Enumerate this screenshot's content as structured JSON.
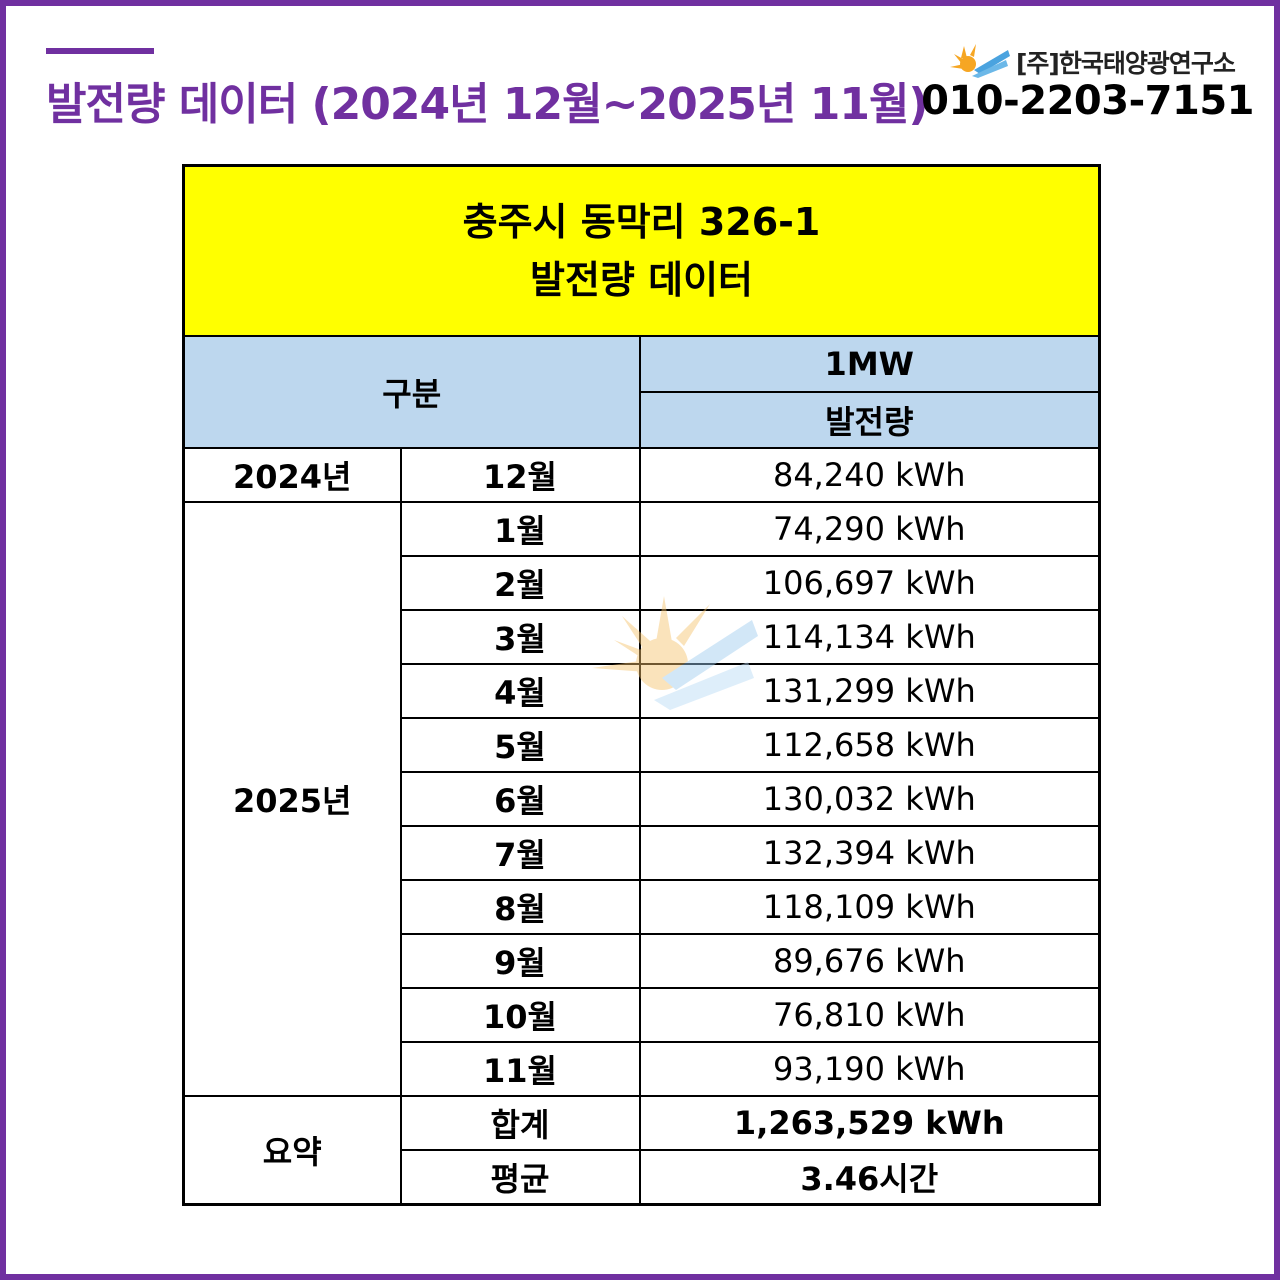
{
  "header": {
    "title": "발전량 데이터 (2024년 12월~2025년 11월)",
    "company": "[주]한국태양광연구소",
    "phone": "010-2203-7151",
    "logo_icon": "sun-solar-panel-icon"
  },
  "table": {
    "heading_line1": "충주시 동막리 326-1",
    "heading_line2": "발전량 데이터",
    "col_category": "구분",
    "col_capacity": "1MW",
    "col_generation": "발전량",
    "year_2024": "2024년",
    "year_2025": "2025년",
    "rows_2024": [
      {
        "month": "12월",
        "value": "84,240 kWh"
      }
    ],
    "rows_2025": [
      {
        "month": "1월",
        "value": "74,290 kWh"
      },
      {
        "month": "2월",
        "value": "106,697 kWh"
      },
      {
        "month": "3월",
        "value": "114,134 kWh"
      },
      {
        "month": "4월",
        "value": "131,299 kWh"
      },
      {
        "month": "5월",
        "value": "112,658 kWh"
      },
      {
        "month": "6월",
        "value": "130,032 kWh"
      },
      {
        "month": "7월",
        "value": "132,394 kWh"
      },
      {
        "month": "8월",
        "value": "118,109 kWh"
      },
      {
        "month": "9월",
        "value": "89,676 kWh"
      },
      {
        "month": "10월",
        "value": "76,810 kWh"
      },
      {
        "month": "11월",
        "value": "93,190 kWh"
      }
    ],
    "summary_label": "요약",
    "total_label": "합계",
    "total_value": "1,263,529 kWh",
    "average_label": "평균",
    "average_value": "3.46시간"
  },
  "colors": {
    "accent": "#7030a0",
    "heading_bg": "#ffff00",
    "header_bg": "#bdd7ee",
    "average_text": "#ff0000"
  }
}
